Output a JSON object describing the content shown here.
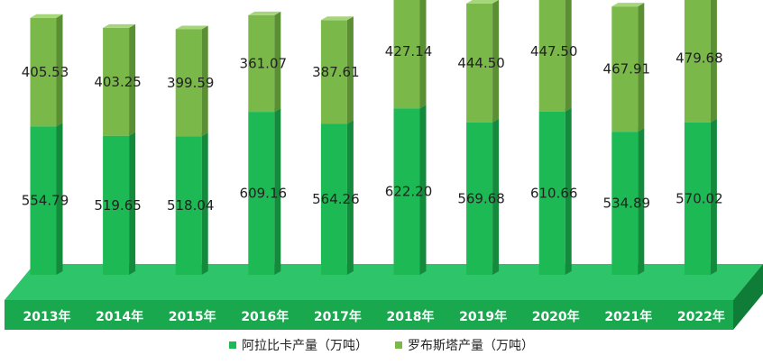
{
  "colors": {
    "arabica_front": "#1db954",
    "arabica_side": "#148a3c",
    "arabica_top": "#4fd27a",
    "robusta_front": "#7bb84a",
    "robusta_side": "#5a8f33",
    "robusta_top": "#a6d67a",
    "platform_top": "#2ec56a",
    "platform_front": "#1aa84f",
    "platform_side": "#0f7d38",
    "year_label": "#ffffff",
    "value_label": "#222222"
  },
  "chart_data": {
    "type": "bar",
    "stacked": true,
    "categories": [
      "2013年",
      "2014年",
      "2015年",
      "2016年",
      "2017年",
      "2018年",
      "2019年",
      "2020年",
      "2021年",
      "2022年"
    ],
    "series": [
      {
        "name": "阿拉比卡产量（万吨）",
        "values": [
          554.79,
          519.65,
          518.04,
          609.16,
          564.26,
          622.2,
          569.68,
          610.66,
          534.89,
          570.02
        ]
      },
      {
        "name": "罗布斯塔产量（万吨）",
        "values": [
          405.53,
          403.25,
          399.59,
          361.07,
          387.61,
          427.14,
          444.5,
          447.5,
          467.91,
          479.68
        ]
      }
    ],
    "value_labels": [
      [
        "554.79",
        "519.65",
        "518.04",
        "609.16",
        "564.26",
        "622.20",
        "569.68",
        "610.66",
        "534.89",
        "570.02"
      ],
      [
        "405.53",
        "403.25",
        "399.59",
        "361.07",
        "387.61",
        "427.14",
        "444.50",
        "447.50",
        "467.91",
        "479.68"
      ]
    ],
    "ylim": [
      0,
      1050
    ],
    "grid": false,
    "legend_position": "bottom"
  }
}
